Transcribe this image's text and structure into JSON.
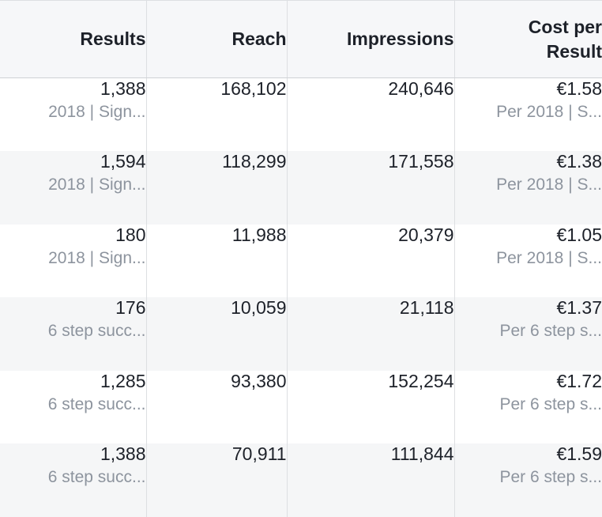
{
  "columns": {
    "results": "Results",
    "reach": "Reach",
    "impressions": "Impressions",
    "cost_per_result": "Cost per\nResult"
  },
  "rows": [
    {
      "results": "1,388",
      "results_sub": "2018 | Sign...",
      "reach": "168,102",
      "impressions": "240,646",
      "cost": "€1.58",
      "cost_sub": "Per 2018 | S..."
    },
    {
      "results": "1,594",
      "results_sub": "2018 | Sign...",
      "reach": "118,299",
      "impressions": "171,558",
      "cost": "€1.38",
      "cost_sub": "Per 2018 | S..."
    },
    {
      "results": "180",
      "results_sub": "2018 | Sign...",
      "reach": "11,988",
      "impressions": "20,379",
      "cost": "€1.05",
      "cost_sub": "Per 2018 | S..."
    },
    {
      "results": "176",
      "results_sub": "6 step succ...",
      "reach": "10,059",
      "impressions": "21,118",
      "cost": "€1.37",
      "cost_sub": "Per 6 step s..."
    },
    {
      "results": "1,285",
      "results_sub": "6 step succ...",
      "reach": "93,380",
      "impressions": "152,254",
      "cost": "€1.72",
      "cost_sub": "Per 6 step s..."
    },
    {
      "results": "1,388",
      "results_sub": "6 step succ...",
      "reach": "70,911",
      "impressions": "111,844",
      "cost": "€1.59",
      "cost_sub": "Per 6 step s..."
    }
  ]
}
